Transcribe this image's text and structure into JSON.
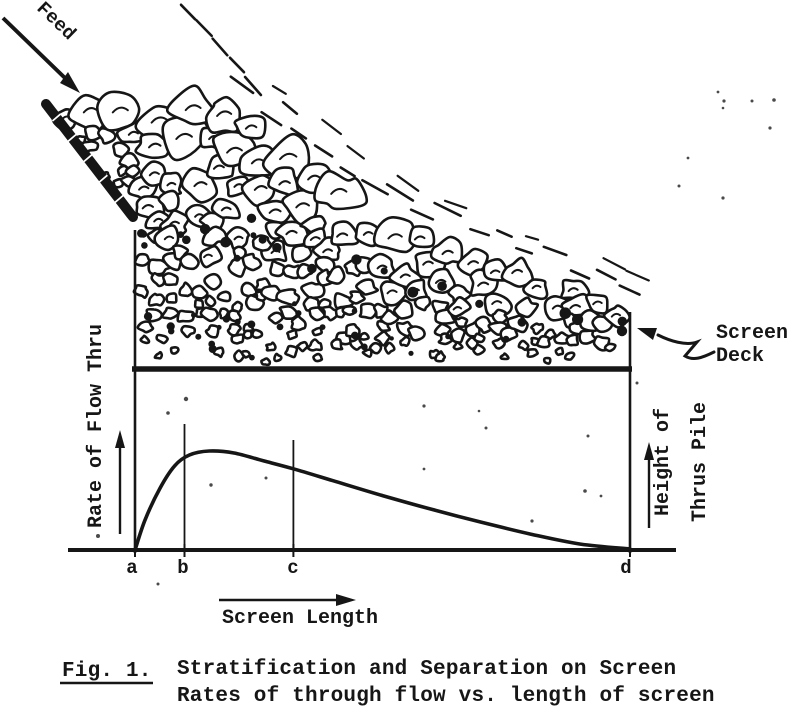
{
  "figure": {
    "caption": {
      "fig_label": "Fig. 1.",
      "line1": "Stratification and Separation on Screen",
      "line2": "Rates of through flow vs. length of screen"
    },
    "labels": {
      "feed": "Feed",
      "screen_deck_line1": "Screen",
      "screen_deck_line2": "Deck",
      "y_left": "Rate of Flow Thru",
      "y_right_line1": "Height of",
      "y_right_line2": "Thrus Pile",
      "x_axis": "Screen Length",
      "ticks": [
        "a",
        "b",
        "c",
        "d"
      ]
    },
    "colors": {
      "ink": "#161616",
      "paper": "#ffffff"
    }
  },
  "chart_data": {
    "type": "line",
    "title": "Rates of through flow vs. length of screen",
    "xlabel": "Screen Length",
    "ylabel": "Rate of Flow Thru",
    "ylabel_right": "Height of Thrus Pile",
    "x_tick_labels": [
      "a",
      "b",
      "c",
      "d"
    ],
    "x_tick_positions": [
      0,
      0.1,
      0.32,
      1.0
    ],
    "x_units": "normalized screen length (a=0, d=1)",
    "y_units": "normalized rate of through flow (peak=1)",
    "x": [
      0,
      0.02,
      0.05,
      0.08,
      0.11,
      0.15,
      0.2,
      0.26,
      0.32,
      0.4,
      0.5,
      0.6,
      0.7,
      0.8,
      0.9,
      1.0
    ],
    "y": [
      0,
      0.3,
      0.62,
      0.85,
      0.96,
      1.0,
      0.98,
      0.9,
      0.82,
      0.7,
      0.55,
      0.41,
      0.28,
      0.16,
      0.06,
      0.01
    ],
    "marker_lines_at": [
      0.1,
      0.32
    ],
    "grid": false,
    "legend": false
  }
}
